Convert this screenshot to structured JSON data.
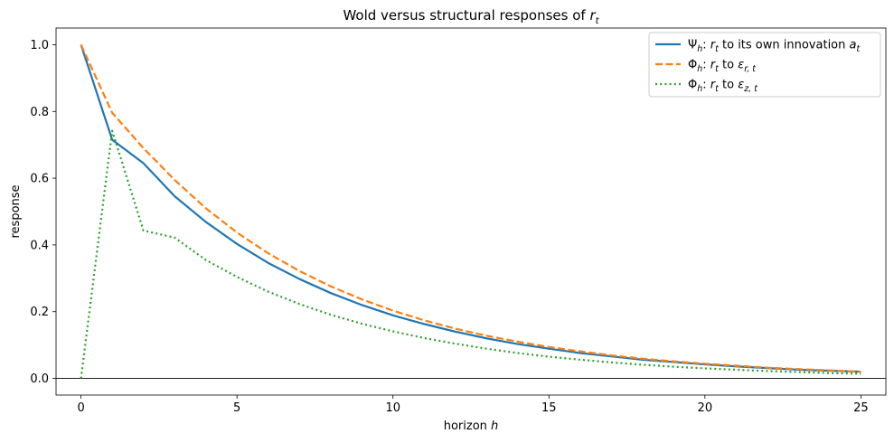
{
  "chart_data": {
    "type": "line",
    "title": "Wold versus structural responses of ",
    "title_math": "r",
    "title_math_sub": "t",
    "xlabel": "horizon ",
    "xlabel_math": "h",
    "ylabel": "response",
    "xlim": [
      -0.8,
      25.8
    ],
    "ylim": [
      -0.05,
      1.05
    ],
    "xticks": [
      0,
      5,
      10,
      15,
      20,
      25
    ],
    "xtick_labels": [
      "0",
      "5",
      "10",
      "15",
      "20",
      "25"
    ],
    "yticks": [
      0.0,
      0.2,
      0.4,
      0.6,
      0.8,
      1.0
    ],
    "ytick_labels": [
      "0.0",
      "0.2",
      "0.4",
      "0.6",
      "0.8",
      "1.0"
    ],
    "hline_y": 0,
    "grid": false,
    "legend_position": "top-right",
    "x": [
      0,
      1,
      2,
      3,
      4,
      5,
      6,
      7,
      8,
      9,
      10,
      11,
      12,
      13,
      14,
      15,
      16,
      17,
      18,
      19,
      20,
      21,
      22,
      23,
      24,
      25
    ],
    "series": [
      {
        "legend": [
          "Ψ",
          "h",
          ": ",
          "r",
          "t",
          " to its own innovation ",
          "a",
          "t"
        ],
        "color": "#1f77b4",
        "style": "solid",
        "values": [
          1.0,
          0.715,
          0.645,
          0.546,
          0.469,
          0.403,
          0.346,
          0.298,
          0.256,
          0.22,
          0.189,
          0.163,
          0.14,
          0.12,
          0.103,
          0.089,
          0.076,
          0.066,
          0.056,
          0.049,
          0.042,
          0.036,
          0.031,
          0.026,
          0.023,
          0.02
        ]
      },
      {
        "legend": [
          "Φ",
          "h",
          ": ",
          "r",
          "t",
          " to ",
          "ε",
          "r, t"
        ],
        "color": "#ff7f0e",
        "style": "dashed",
        "values": [
          1.0,
          0.796,
          0.69,
          0.595,
          0.51,
          0.437,
          0.375,
          0.322,
          0.276,
          0.237,
          0.203,
          0.174,
          0.149,
          0.128,
          0.11,
          0.094,
          0.081,
          0.069,
          0.059,
          0.051,
          0.044,
          0.038,
          0.032,
          0.028,
          0.024,
          0.02
        ]
      },
      {
        "legend": [
          "Φ",
          "h",
          ": ",
          "r",
          "t",
          " to ",
          "ε",
          "z, t"
        ],
        "color": "#2ca02c",
        "style": "dotted",
        "values": [
          0.0,
          0.742,
          0.443,
          0.422,
          0.355,
          0.304,
          0.26,
          0.223,
          0.191,
          0.164,
          0.141,
          0.121,
          0.104,
          0.089,
          0.076,
          0.065,
          0.056,
          0.048,
          0.041,
          0.035,
          0.03,
          0.026,
          0.022,
          0.019,
          0.016,
          0.014
        ]
      }
    ]
  }
}
